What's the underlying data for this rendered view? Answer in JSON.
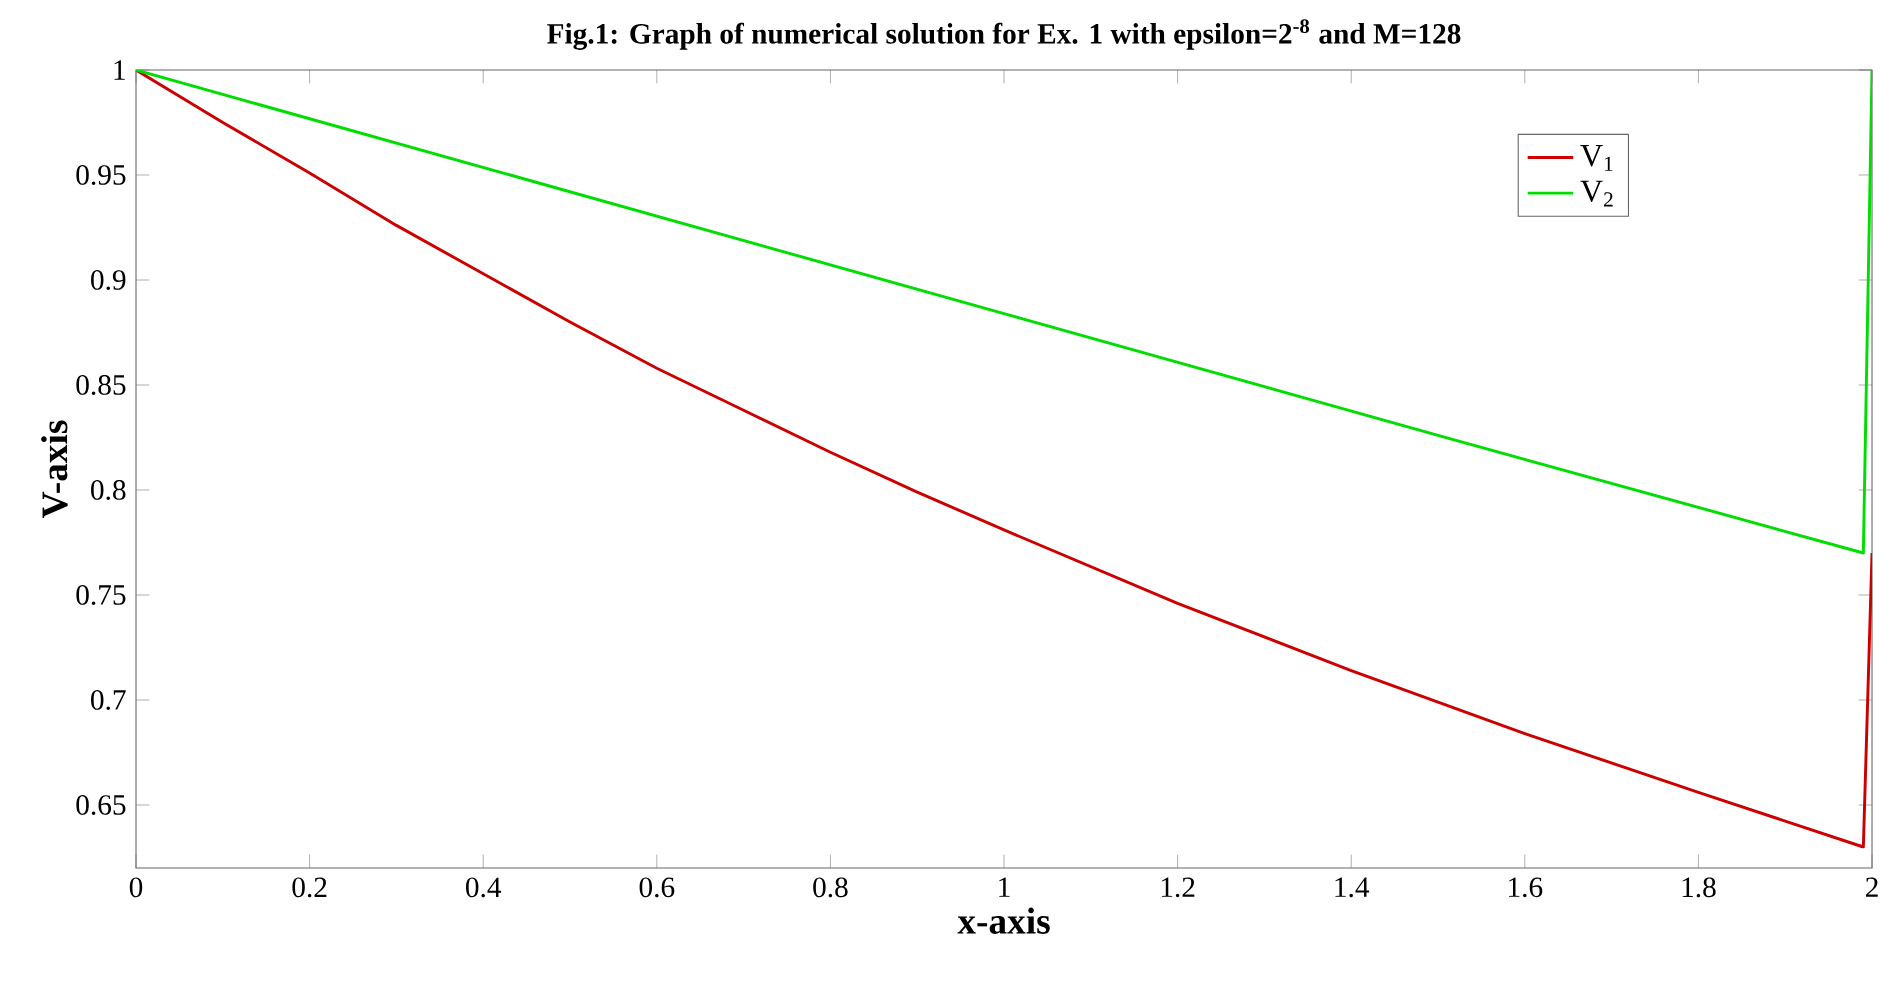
{
  "chart_data": {
    "type": "line",
    "title": "Fig.1: Graph of numerical solution for Ex. 1 with epsilon=2$^{-8}$ and M=128",
    "xlabel": "x-axis",
    "ylabel": "V-axis",
    "xlim": [
      0,
      2
    ],
    "ylim": [
      0.62,
      1
    ],
    "xticks": [
      0,
      0.2,
      0.4,
      0.6,
      0.8,
      1,
      1.2,
      1.4,
      1.6,
      1.8,
      2
    ],
    "yticks": [
      0.65,
      0.7,
      0.75,
      0.8,
      0.85,
      0.9,
      0.95,
      1
    ],
    "grid": false,
    "legend": "top right",
    "marker": "none",
    "line_style": "solid",
    "series": [
      {
        "name": "V$_{1}$",
        "color": "#cc0000",
        "x": [
          0,
          0.1,
          0.2,
          0.3,
          0.4,
          0.5,
          0.6,
          0.7,
          0.8,
          0.9,
          1.0,
          1.2,
          1.4,
          1.6,
          1.8,
          1.99,
          2
        ],
        "values": [
          1,
          0.975,
          0.951,
          0.926,
          0.903,
          0.88,
          0.858,
          0.838,
          0.818,
          0.799,
          0.781,
          0.746,
          0.714,
          0.684,
          0.656,
          0.63,
          0.77
        ]
      },
      {
        "name": "V$_{2}$",
        "color": "#00dd00",
        "x": [
          0,
          0.5,
          1.0,
          1.5,
          1.99,
          2
        ],
        "values": [
          1,
          0.942,
          0.884,
          0.826,
          0.77,
          1
        ]
      }
    ]
  }
}
